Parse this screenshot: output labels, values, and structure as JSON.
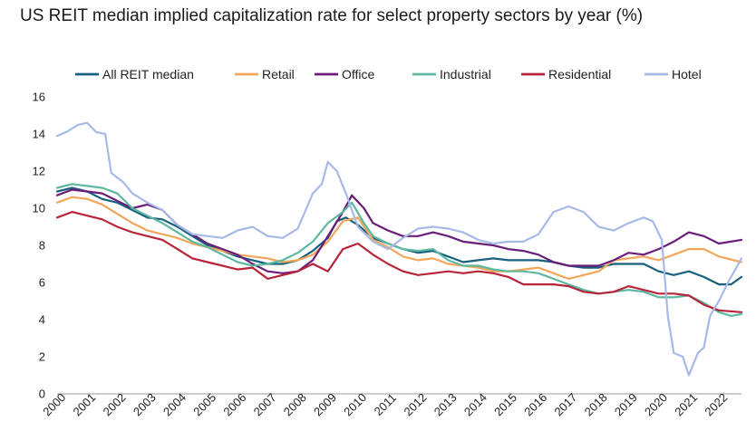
{
  "chart_data": {
    "type": "line",
    "title": "US REIT median implied capitalization rate for select property sectors by year (%)",
    "xlabel": "",
    "ylabel": "",
    "xlim": [
      2000,
      2022.75
    ],
    "ylim": [
      0,
      16
    ],
    "yticks": [
      0,
      2,
      4,
      6,
      8,
      10,
      12,
      14,
      16
    ],
    "xticks": [
      2000,
      2001,
      2002,
      2003,
      2004,
      2005,
      2006,
      2007,
      2008,
      2009,
      2010,
      2011,
      2012,
      2013,
      2014,
      2015,
      2016,
      2017,
      2018,
      2019,
      2020,
      2021,
      2022
    ],
    "grid": false,
    "legend": "top",
    "series": [
      {
        "name": "All REIT median",
        "color": "#17607f",
        "points": [
          [
            2000,
            10.9
          ],
          [
            2000.5,
            11.1
          ],
          [
            2001,
            10.9
          ],
          [
            2001.5,
            10.5
          ],
          [
            2002,
            10.3
          ],
          [
            2002.5,
            9.9
          ],
          [
            2003,
            9.5
          ],
          [
            2003.5,
            9.4
          ],
          [
            2004,
            9.0
          ],
          [
            2004.5,
            8.5
          ],
          [
            2005,
            8.0
          ],
          [
            2005.5,
            7.7
          ],
          [
            2006,
            7.4
          ],
          [
            2006.5,
            7.2
          ],
          [
            2007,
            7.0
          ],
          [
            2007.5,
            7.0
          ],
          [
            2008,
            7.2
          ],
          [
            2008.5,
            7.7
          ],
          [
            2009,
            8.4
          ],
          [
            2009.3,
            9.3
          ],
          [
            2009.6,
            9.5
          ],
          [
            2010,
            9.1
          ],
          [
            2010.5,
            8.4
          ],
          [
            2011,
            8.1
          ],
          [
            2011.5,
            7.8
          ],
          [
            2012,
            7.6
          ],
          [
            2012.5,
            7.7
          ],
          [
            2013,
            7.4
          ],
          [
            2013.5,
            7.1
          ],
          [
            2014,
            7.2
          ],
          [
            2014.5,
            7.3
          ],
          [
            2015,
            7.2
          ],
          [
            2015.5,
            7.2
          ],
          [
            2016,
            7.2
          ],
          [
            2016.5,
            7.1
          ],
          [
            2017,
            6.9
          ],
          [
            2017.5,
            6.8
          ],
          [
            2018,
            6.8
          ],
          [
            2018.5,
            7.0
          ],
          [
            2019,
            7.0
          ],
          [
            2019.5,
            7.0
          ],
          [
            2020,
            6.6
          ],
          [
            2020.5,
            6.4
          ],
          [
            2021,
            6.6
          ],
          [
            2021.5,
            6.3
          ],
          [
            2022,
            5.9
          ],
          [
            2022.4,
            5.9
          ],
          [
            2022.75,
            6.3
          ]
        ]
      },
      {
        "name": "Retail",
        "color": "#f2a65a",
        "points": [
          [
            2000,
            10.3
          ],
          [
            2000.5,
            10.6
          ],
          [
            2001,
            10.5
          ],
          [
            2001.5,
            10.2
          ],
          [
            2002,
            9.7
          ],
          [
            2002.5,
            9.2
          ],
          [
            2003,
            8.8
          ],
          [
            2003.5,
            8.6
          ],
          [
            2004,
            8.4
          ],
          [
            2004.5,
            8.1
          ],
          [
            2005,
            7.9
          ],
          [
            2005.5,
            7.7
          ],
          [
            2006,
            7.5
          ],
          [
            2006.5,
            7.4
          ],
          [
            2007,
            7.3
          ],
          [
            2007.5,
            7.1
          ],
          [
            2008,
            7.2
          ],
          [
            2008.5,
            7.5
          ],
          [
            2009,
            8.2
          ],
          [
            2009.5,
            9.3
          ],
          [
            2010,
            9.5
          ],
          [
            2010.5,
            8.3
          ],
          [
            2011,
            7.9
          ],
          [
            2011.5,
            7.4
          ],
          [
            2012,
            7.2
          ],
          [
            2012.5,
            7.3
          ],
          [
            2013,
            7.0
          ],
          [
            2013.5,
            6.9
          ],
          [
            2014,
            6.8
          ],
          [
            2014.5,
            6.6
          ],
          [
            2015,
            6.6
          ],
          [
            2015.5,
            6.7
          ],
          [
            2016,
            6.8
          ],
          [
            2016.5,
            6.5
          ],
          [
            2017,
            6.2
          ],
          [
            2017.5,
            6.4
          ],
          [
            2018,
            6.6
          ],
          [
            2018.5,
            7.2
          ],
          [
            2019,
            7.3
          ],
          [
            2019.5,
            7.4
          ],
          [
            2020,
            7.2
          ],
          [
            2020.5,
            7.5
          ],
          [
            2021,
            7.8
          ],
          [
            2021.5,
            7.8
          ],
          [
            2022,
            7.4
          ],
          [
            2022.75,
            7.1
          ]
        ]
      },
      {
        "name": "Office",
        "color": "#6b1d7a",
        "points": [
          [
            2000,
            10.7
          ],
          [
            2000.5,
            11.0
          ],
          [
            2001,
            10.9
          ],
          [
            2001.5,
            10.8
          ],
          [
            2002,
            10.4
          ],
          [
            2002.5,
            10.0
          ],
          [
            2003,
            10.2
          ],
          [
            2003.5,
            9.9
          ],
          [
            2004,
            9.1
          ],
          [
            2004.5,
            8.6
          ],
          [
            2005,
            8.1
          ],
          [
            2005.5,
            7.8
          ],
          [
            2006,
            7.5
          ],
          [
            2006.5,
            7.0
          ],
          [
            2007,
            6.6
          ],
          [
            2007.5,
            6.5
          ],
          [
            2008,
            6.6
          ],
          [
            2008.5,
            7.2
          ],
          [
            2009,
            8.5
          ],
          [
            2009.5,
            9.8
          ],
          [
            2009.8,
            10.7
          ],
          [
            2010.2,
            10.0
          ],
          [
            2010.5,
            9.2
          ],
          [
            2011,
            8.8
          ],
          [
            2011.5,
            8.5
          ],
          [
            2012,
            8.5
          ],
          [
            2012.5,
            8.7
          ],
          [
            2013,
            8.5
          ],
          [
            2013.5,
            8.2
          ],
          [
            2014,
            8.1
          ],
          [
            2014.5,
            8.0
          ],
          [
            2015,
            7.8
          ],
          [
            2015.5,
            7.7
          ],
          [
            2016,
            7.5
          ],
          [
            2016.5,
            7.1
          ],
          [
            2017,
            6.9
          ],
          [
            2017.5,
            6.9
          ],
          [
            2018,
            6.9
          ],
          [
            2018.5,
            7.2
          ],
          [
            2019,
            7.6
          ],
          [
            2019.5,
            7.5
          ],
          [
            2020,
            7.8
          ],
          [
            2020.5,
            8.2
          ],
          [
            2021,
            8.7
          ],
          [
            2021.5,
            8.5
          ],
          [
            2022,
            8.1
          ],
          [
            2022.75,
            8.3
          ]
        ]
      },
      {
        "name": "Industrial",
        "color": "#5cb8a0",
        "points": [
          [
            2000,
            11.1
          ],
          [
            2000.5,
            11.3
          ],
          [
            2001,
            11.2
          ],
          [
            2001.5,
            11.1
          ],
          [
            2002,
            10.8
          ],
          [
            2002.5,
            10.0
          ],
          [
            2003,
            9.6
          ],
          [
            2003.5,
            9.2
          ],
          [
            2004,
            8.7
          ],
          [
            2004.5,
            8.2
          ],
          [
            2005,
            7.9
          ],
          [
            2005.5,
            7.5
          ],
          [
            2006,
            7.1
          ],
          [
            2006.5,
            6.9
          ],
          [
            2007,
            7.0
          ],
          [
            2007.5,
            7.2
          ],
          [
            2008,
            7.6
          ],
          [
            2008.5,
            8.2
          ],
          [
            2009,
            9.2
          ],
          [
            2009.5,
            9.8
          ],
          [
            2009.8,
            10.3
          ],
          [
            2010.2,
            9.2
          ],
          [
            2010.5,
            8.5
          ],
          [
            2011,
            8.1
          ],
          [
            2011.5,
            7.8
          ],
          [
            2012,
            7.7
          ],
          [
            2012.5,
            7.8
          ],
          [
            2013,
            7.2
          ],
          [
            2013.5,
            6.9
          ],
          [
            2014,
            6.9
          ],
          [
            2014.5,
            6.7
          ],
          [
            2015,
            6.6
          ],
          [
            2015.5,
            6.6
          ],
          [
            2016,
            6.5
          ],
          [
            2016.5,
            6.2
          ],
          [
            2017,
            5.9
          ],
          [
            2017.5,
            5.6
          ],
          [
            2018,
            5.4
          ],
          [
            2018.5,
            5.5
          ],
          [
            2019,
            5.6
          ],
          [
            2019.5,
            5.5
          ],
          [
            2020,
            5.2
          ],
          [
            2020.5,
            5.2
          ],
          [
            2021,
            5.3
          ],
          [
            2021.5,
            4.9
          ],
          [
            2022,
            4.4
          ],
          [
            2022.4,
            4.2
          ],
          [
            2022.75,
            4.3
          ]
        ]
      },
      {
        "name": "Residential",
        "color": "#b7243a",
        "points": [
          [
            2000,
            9.5
          ],
          [
            2000.5,
            9.8
          ],
          [
            2001,
            9.6
          ],
          [
            2001.5,
            9.4
          ],
          [
            2002,
            9.0
          ],
          [
            2002.5,
            8.7
          ],
          [
            2003,
            8.5
          ],
          [
            2003.5,
            8.3
          ],
          [
            2004,
            7.8
          ],
          [
            2004.5,
            7.3
          ],
          [
            2005,
            7.1
          ],
          [
            2005.5,
            6.9
          ],
          [
            2006,
            6.7
          ],
          [
            2006.5,
            6.8
          ],
          [
            2007,
            6.2
          ],
          [
            2007.5,
            6.4
          ],
          [
            2008,
            6.6
          ],
          [
            2008.5,
            7.0
          ],
          [
            2009,
            6.6
          ],
          [
            2009.5,
            7.8
          ],
          [
            2010,
            8.1
          ],
          [
            2010.5,
            7.5
          ],
          [
            2011,
            7.0
          ],
          [
            2011.5,
            6.6
          ],
          [
            2012,
            6.4
          ],
          [
            2012.5,
            6.5
          ],
          [
            2013,
            6.6
          ],
          [
            2013.5,
            6.5
          ],
          [
            2014,
            6.6
          ],
          [
            2014.5,
            6.5
          ],
          [
            2015,
            6.3
          ],
          [
            2015.5,
            5.9
          ],
          [
            2016,
            5.9
          ],
          [
            2016.5,
            5.9
          ],
          [
            2017,
            5.8
          ],
          [
            2017.5,
            5.5
          ],
          [
            2018,
            5.4
          ],
          [
            2018.5,
            5.5
          ],
          [
            2019,
            5.8
          ],
          [
            2019.5,
            5.6
          ],
          [
            2020,
            5.4
          ],
          [
            2020.5,
            5.4
          ],
          [
            2021,
            5.3
          ],
          [
            2021.5,
            4.8
          ],
          [
            2022,
            4.5
          ],
          [
            2022.75,
            4.4
          ]
        ]
      },
      {
        "name": "Hotel",
        "color": "#a7b9e6",
        "points": [
          [
            2000,
            13.9
          ],
          [
            2000.3,
            14.1
          ],
          [
            2000.7,
            14.5
          ],
          [
            2001,
            14.6
          ],
          [
            2001.3,
            14.1
          ],
          [
            2001.6,
            14.0
          ],
          [
            2001.8,
            11.9
          ],
          [
            2002.2,
            11.4
          ],
          [
            2002.5,
            10.8
          ],
          [
            2003,
            10.3
          ],
          [
            2003.5,
            9.9
          ],
          [
            2004,
            9.1
          ],
          [
            2004.5,
            8.6
          ],
          [
            2005,
            8.5
          ],
          [
            2005.5,
            8.4
          ],
          [
            2006,
            8.8
          ],
          [
            2006.5,
            9.0
          ],
          [
            2007,
            8.5
          ],
          [
            2007.5,
            8.4
          ],
          [
            2008,
            8.9
          ],
          [
            2008.5,
            10.8
          ],
          [
            2008.8,
            11.3
          ],
          [
            2009,
            12.5
          ],
          [
            2009.3,
            12.0
          ],
          [
            2009.6,
            10.8
          ],
          [
            2010,
            9.0
          ],
          [
            2010.5,
            8.2
          ],
          [
            2011,
            7.8
          ],
          [
            2011.5,
            8.4
          ],
          [
            2012,
            8.9
          ],
          [
            2012.5,
            9.0
          ],
          [
            2013,
            8.9
          ],
          [
            2013.5,
            8.7
          ],
          [
            2014,
            8.3
          ],
          [
            2014.5,
            8.1
          ],
          [
            2015,
            8.2
          ],
          [
            2015.5,
            8.2
          ],
          [
            2016,
            8.6
          ],
          [
            2016.5,
            9.8
          ],
          [
            2017,
            10.1
          ],
          [
            2017.5,
            9.8
          ],
          [
            2018,
            9.0
          ],
          [
            2018.5,
            8.8
          ],
          [
            2019,
            9.2
          ],
          [
            2019.5,
            9.5
          ],
          [
            2019.8,
            9.3
          ],
          [
            2020.1,
            8.3
          ],
          [
            2020.3,
            4.2
          ],
          [
            2020.5,
            2.2
          ],
          [
            2020.8,
            2.0
          ],
          [
            2021,
            1.0
          ],
          [
            2021.3,
            2.2
          ],
          [
            2021.5,
            2.5
          ],
          [
            2021.7,
            4.2
          ],
          [
            2022,
            5.0
          ],
          [
            2022.3,
            6.0
          ],
          [
            2022.75,
            7.3
          ]
        ]
      }
    ]
  }
}
